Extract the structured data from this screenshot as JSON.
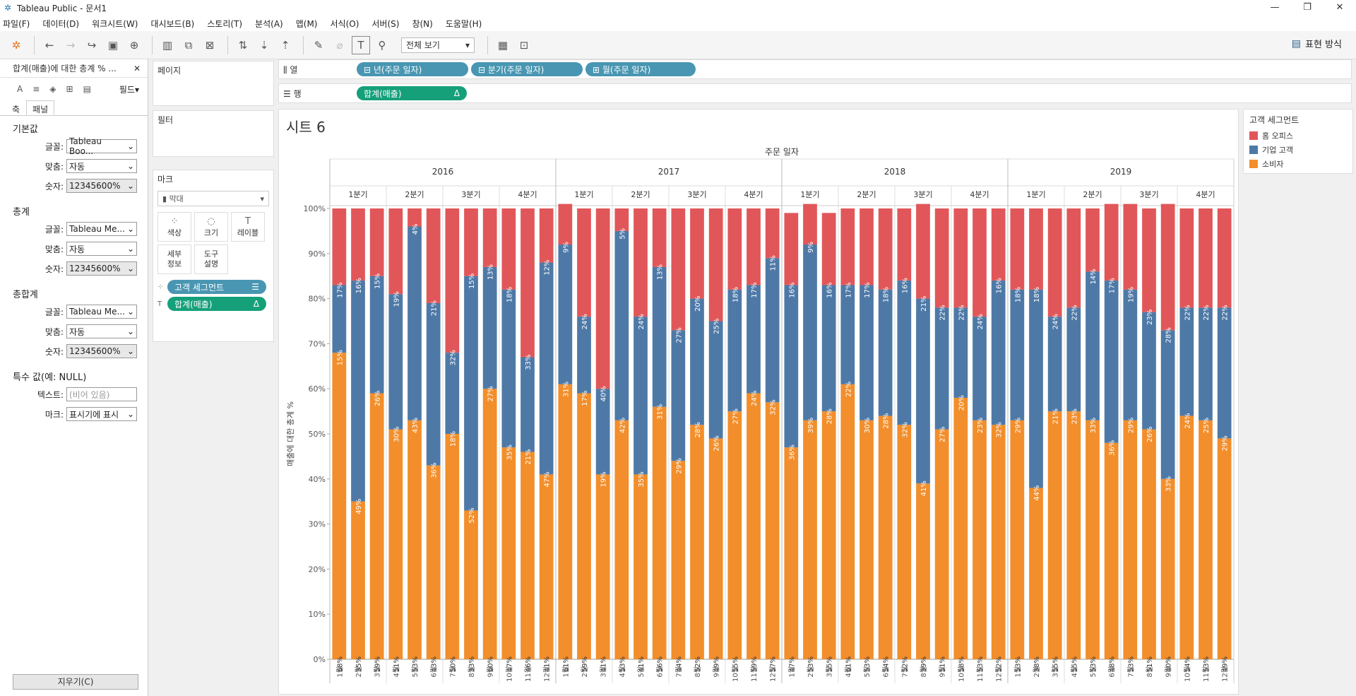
{
  "window": {
    "title": "Tableau Public - 문서1",
    "min": "—",
    "max": "❐",
    "close": "✕"
  },
  "menu": [
    "파일(F)",
    "데이터(D)",
    "워크시트(W)",
    "대시보드(B)",
    "스토리(T)",
    "분석(A)",
    "맵(M)",
    "서식(O)",
    "서버(S)",
    "창(N)",
    "도움말(H)"
  ],
  "toolbar": {
    "view_select": "전체 보기",
    "show_me": "표현 방식"
  },
  "format_panel": {
    "title": "합계(매출)에 대한 총계 % ...",
    "close": "✕",
    "field_dd": "필드▾",
    "tabs": [
      "축",
      "패널"
    ],
    "sections": [
      {
        "title": "기본값",
        "rows": [
          {
            "label": "글꼴:",
            "value": "Tableau Boo..."
          },
          {
            "label": "맞춤:",
            "value": "자동"
          },
          {
            "label": "숫자:",
            "value": "12345600%"
          }
        ]
      },
      {
        "title": "총계",
        "rows": [
          {
            "label": "글꼴:",
            "value": "Tableau Me..."
          },
          {
            "label": "맞춤:",
            "value": "자동"
          },
          {
            "label": "숫자:",
            "value": "12345600%"
          }
        ]
      },
      {
        "title": "총합계",
        "rows": [
          {
            "label": "글꼴:",
            "value": "Tableau Me..."
          },
          {
            "label": "맞춤:",
            "value": "자동"
          },
          {
            "label": "숫자:",
            "value": "12345600%"
          }
        ]
      }
    ],
    "special": {
      "title": "특수 값(예: NULL)",
      "text_label": "텍스트:",
      "text_placeholder": "(비어 있음)",
      "marks_label": "마크:",
      "marks_value": "표시기에 표시"
    },
    "clear_button": "지우기(C)"
  },
  "cards": {
    "pages": "페이지",
    "filters": "필터",
    "marks": "마크",
    "mark_type": "막대",
    "buttons": [
      "색상",
      "크기",
      "레이블",
      "세부\n정보",
      "도구\n설명"
    ],
    "pill_color": "고객 세그먼트",
    "pill_label": "합계(매출)"
  },
  "shelves": {
    "columns_label": "열",
    "rows_label": "행",
    "columns": [
      "⊟ 년(주문 일자)",
      "⊟ 분기(주문 일자)",
      "⊞ 월(주문 일자)"
    ],
    "rows": [
      "합계(매출)"
    ]
  },
  "colors": {
    "home_office": "#e15759",
    "corporate": "#4e79a7",
    "consumer": "#f28e2b"
  },
  "chart_data": {
    "type": "bar",
    "title": "시트 6",
    "x_header": "주문 일자",
    "ylabel": "매출에 대한 총계 %",
    "ylim": [
      0,
      100
    ],
    "yticks": [
      "0%",
      "10%",
      "20%",
      "30%",
      "40%",
      "50%",
      "60%",
      "70%",
      "80%",
      "90%",
      "100%"
    ],
    "years": [
      "2016",
      "2017",
      "2018",
      "2019"
    ],
    "quarters": [
      "1분기",
      "2분기",
      "3분기",
      "4분기"
    ],
    "months": [
      "1월",
      "2월",
      "3월",
      "4월",
      "5월",
      "6월",
      "7월",
      "8월",
      "9월",
      "10월",
      "11월",
      "12월"
    ],
    "legend_title": "고객 세그먼트",
    "series": [
      {
        "name": "소비자",
        "values": [
          68,
          35,
          59,
          51,
          53,
          43,
          50,
          33,
          60,
          47,
          46,
          41,
          61,
          59,
          41,
          53,
          41,
          56,
          44,
          52,
          49,
          55,
          59,
          57,
          47,
          53,
          55,
          61,
          53,
          54,
          52,
          39,
          51,
          58,
          53,
          52,
          53,
          38,
          55,
          55,
          53,
          48,
          53,
          51,
          40,
          54,
          53,
          49
        ]
      },
      {
        "name": "기업 고객",
        "values": [
          15,
          49,
          26,
          30,
          43,
          36,
          18,
          52,
          27,
          35,
          21,
          47,
          31,
          17,
          19,
          42,
          35,
          31,
          29,
          28,
          26,
          27,
          24,
          32,
          36,
          39,
          28,
          22,
          30,
          28,
          32,
          41,
          27,
          20,
          23,
          32,
          29,
          44,
          21,
          23,
          33,
          36,
          29,
          26,
          33,
          24,
          25,
          29
        ]
      },
      {
        "name": "홈 오피스",
        "values": [
          17,
          16,
          15,
          19,
          4,
          21,
          32,
          15,
          13,
          18,
          33,
          12,
          9,
          24,
          40,
          5,
          24,
          13,
          27,
          20,
          25,
          18,
          17,
          11,
          16,
          9,
          16,
          17,
          17,
          18,
          16,
          21,
          22,
          22,
          24,
          16,
          18,
          18,
          24,
          22,
          14,
          17,
          19,
          23,
          28,
          22,
          22,
          22
        ]
      }
    ]
  }
}
